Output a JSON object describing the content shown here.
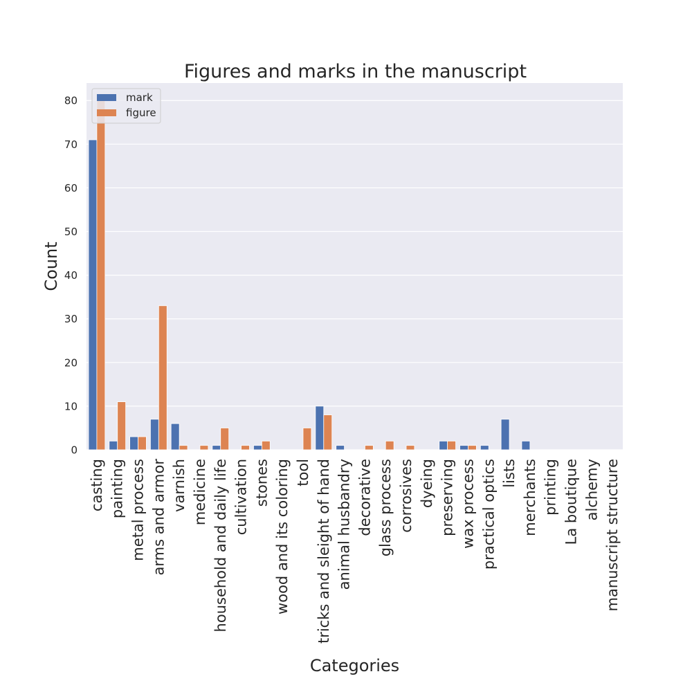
{
  "chart_data": {
    "type": "bar",
    "title": "Figures and marks in the manuscript",
    "xlabel": "Categories",
    "ylabel": "Count",
    "categories": [
      "casting",
      "painting",
      "metal process",
      "arms and armor",
      "varnish",
      "medicine",
      "household and daily life",
      "cultivation",
      "stones",
      "wood and its coloring",
      "tool",
      "tricks and sleight of hand",
      "animal husbandry",
      "decorative",
      "glass process",
      "corrosives",
      "dyeing",
      "preserving",
      "wax process",
      "practical optics",
      "lists",
      "merchants",
      "printing",
      "La boutique",
      "alchemy",
      "manuscript structure"
    ],
    "series": [
      {
        "name": "mark",
        "color": "#4c72b0",
        "values": [
          71,
          2,
          3,
          7,
          6,
          0,
          1,
          0,
          1,
          0,
          0,
          10,
          1,
          0,
          0,
          0,
          0,
          2,
          1,
          1,
          7,
          2,
          0,
          0,
          0,
          0
        ]
      },
      {
        "name": "figure",
        "color": "#dd8452",
        "values": [
          80,
          11,
          3,
          33,
          1,
          1,
          5,
          1,
          2,
          0,
          5,
          8,
          0,
          1,
          2,
          1,
          0,
          2,
          1,
          0,
          0,
          0,
          0,
          0,
          0,
          0
        ]
      }
    ],
    "yticks": [
      0,
      10,
      20,
      30,
      40,
      50,
      60,
      70,
      80
    ],
    "ylim": [
      0,
      84
    ],
    "grid": true,
    "legend_position": "top-left",
    "background_color": "#eaeaf2",
    "grid_color": "#ffffff"
  }
}
